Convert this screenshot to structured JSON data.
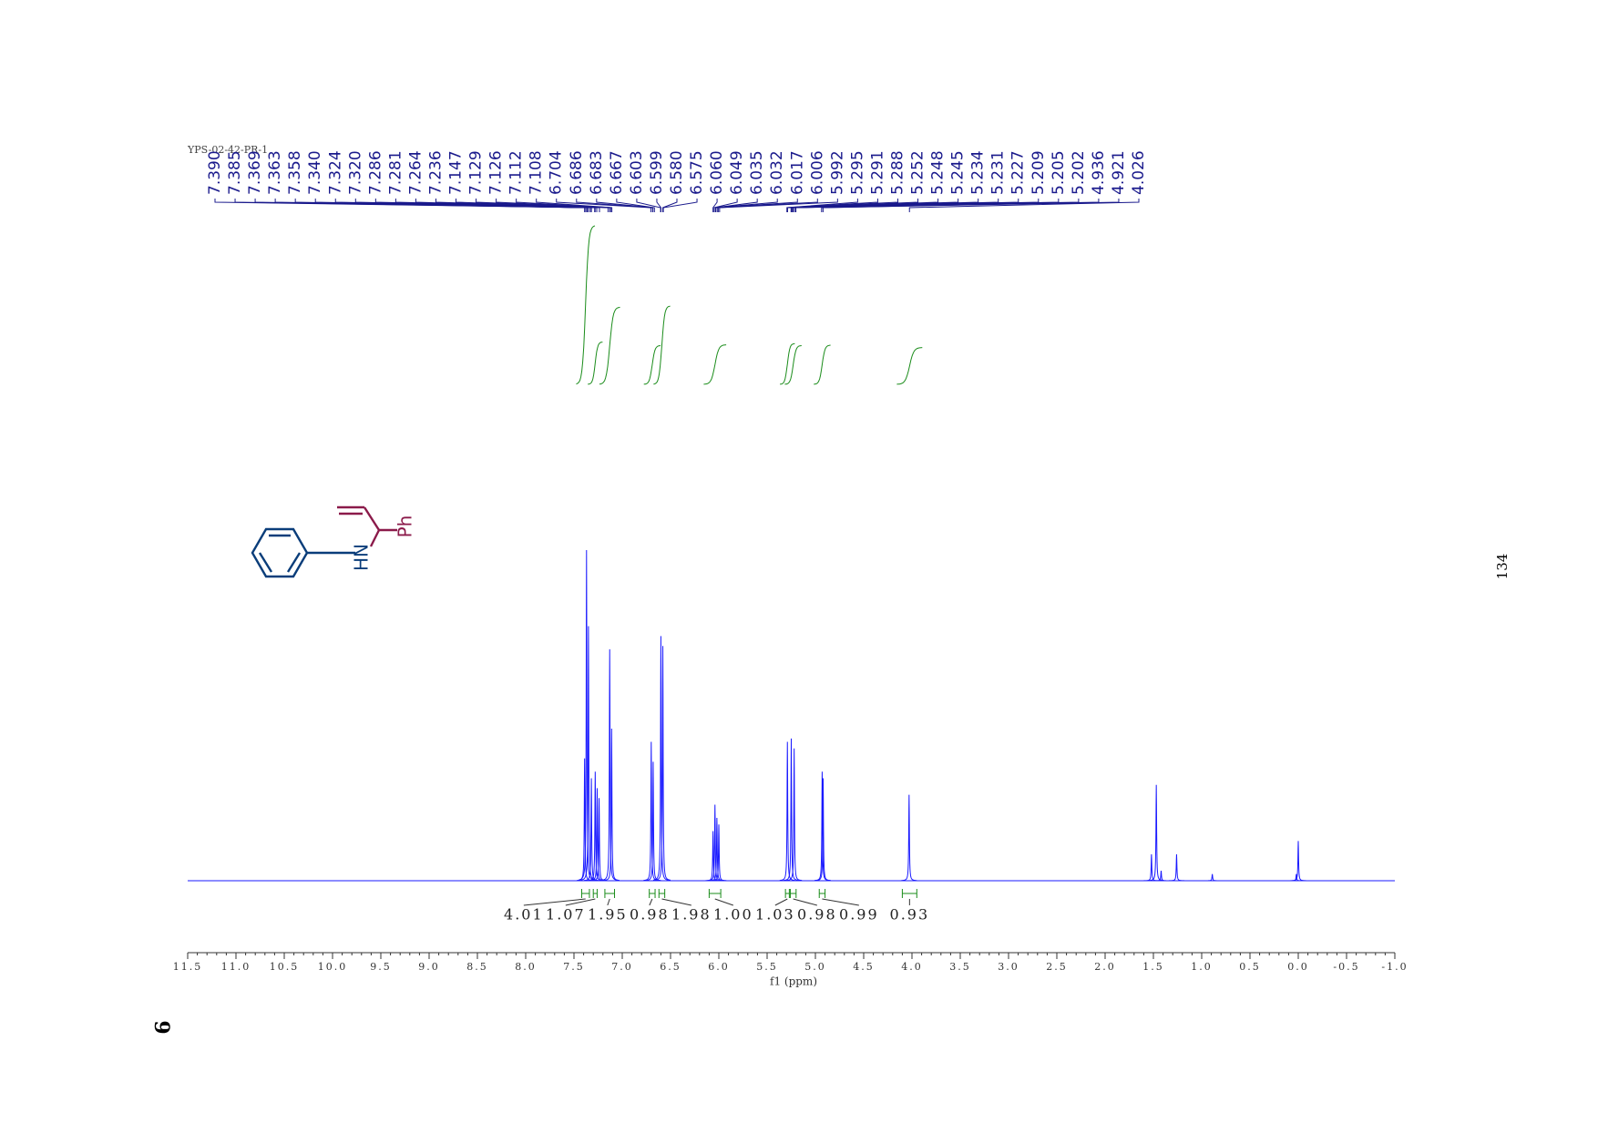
{
  "chart_data": {
    "type": "nmr",
    "title": "YPS-02-42-PR-1",
    "xlabel": "f1 (ppm)",
    "xlim": [
      11.5,
      -1.0
    ],
    "ylim": [
      0,
      100
    ],
    "xticks": [
      11.5,
      {
        "value": 11,
        "label": "11.0"
      },
      10.5,
      {
        "value": 10,
        "label": "10.0"
      },
      9.5,
      {
        "value": 9,
        "label": "9.0"
      },
      8.5,
      {
        "value": 8,
        "label": "8.0"
      },
      7.5,
      {
        "value": 7,
        "label": "7.0"
      },
      6.5,
      {
        "value": 6,
        "label": "6.0"
      },
      5.5,
      {
        "value": 5,
        "label": "5.0"
      },
      4.5,
      {
        "value": 4,
        "label": "4.0"
      },
      3.5,
      {
        "value": 3,
        "label": "3.0"
      },
      2.5,
      {
        "value": 2,
        "label": "2.0"
      },
      1.5,
      {
        "value": 1,
        "label": "1.0"
      },
      0.5,
      {
        "value": 0,
        "label": "0.0"
      },
      -0.5,
      {
        "value": -1,
        "label": "-1.0"
      }
    ],
    "series": [
      {
        "name": "spectrum",
        "color": "#1a1aff",
        "x": [
          7.39,
          7.37,
          7.35,
          7.32,
          7.28,
          7.26,
          7.24,
          7.13,
          7.11,
          6.7,
          6.68,
          6.6,
          6.58,
          6.06,
          6.04,
          6.02,
          6.0,
          5.29,
          5.25,
          5.22,
          4.93,
          4.92,
          4.03,
          1.52,
          1.47,
          1.42,
          1.26,
          0.89,
          0.02,
          0.0
        ],
        "values": [
          37,
          100,
          77,
          31,
          33,
          28,
          25,
          70,
          46,
          42,
          36,
          74,
          71,
          15,
          23,
          19,
          17,
          42,
          43,
          40,
          33,
          31,
          26,
          8,
          29,
          3,
          8,
          2,
          2,
          12
        ]
      }
    ],
    "peak_labels": [
      {
        "value": 7.39,
        "label": "7.390"
      },
      7.385,
      7.369,
      7.363,
      7.358,
      {
        "value": 7.34,
        "label": "7.340"
      },
      7.324,
      {
        "value": 7.32,
        "label": "7.320"
      },
      7.286,
      7.281,
      7.264,
      7.236,
      7.147,
      7.129,
      7.126,
      7.112,
      7.108,
      6.704,
      6.686,
      6.683,
      6.667,
      6.603,
      6.599,
      {
        "value": 6.58,
        "label": "6.580"
      },
      6.575,
      {
        "value": 6.06,
        "label": "6.060"
      },
      6.049,
      6.035,
      6.032,
      6.017,
      6.006,
      5.992,
      5.295,
      5.291,
      5.288,
      5.252,
      5.248,
      5.245,
      5.234,
      5.231,
      5.227,
      5.209,
      5.205,
      5.202,
      4.936,
      4.921,
      4.026
    ],
    "integrals": [
      {
        "range": [
          7.42,
          7.34
        ],
        "value": 4.01
      },
      {
        "range": [
          7.3,
          7.26
        ],
        "value": 1.07
      },
      {
        "range": [
          7.18,
          7.08
        ],
        "value": 1.95
      },
      {
        "range": [
          6.72,
          6.66
        ],
        "value": 0.98
      },
      {
        "range": [
          6.62,
          6.56
        ],
        "value": 1.98
      },
      {
        "range": [
          6.1,
          5.98
        ],
        "value": 1.0,
        "label": "1.00"
      },
      {
        "range": [
          5.31,
          5.27
        ],
        "value": 1.03
      },
      {
        "range": [
          5.26,
          5.2
        ],
        "value": 0.98
      },
      {
        "range": [
          4.96,
          4.9
        ],
        "value": 0.99
      },
      {
        "range": [
          4.1,
          3.95
        ],
        "value": 0.93
      }
    ],
    "structure": {
      "nh": "HN",
      "ph": "Ph"
    },
    "page_number": "134",
    "compound": "9"
  }
}
